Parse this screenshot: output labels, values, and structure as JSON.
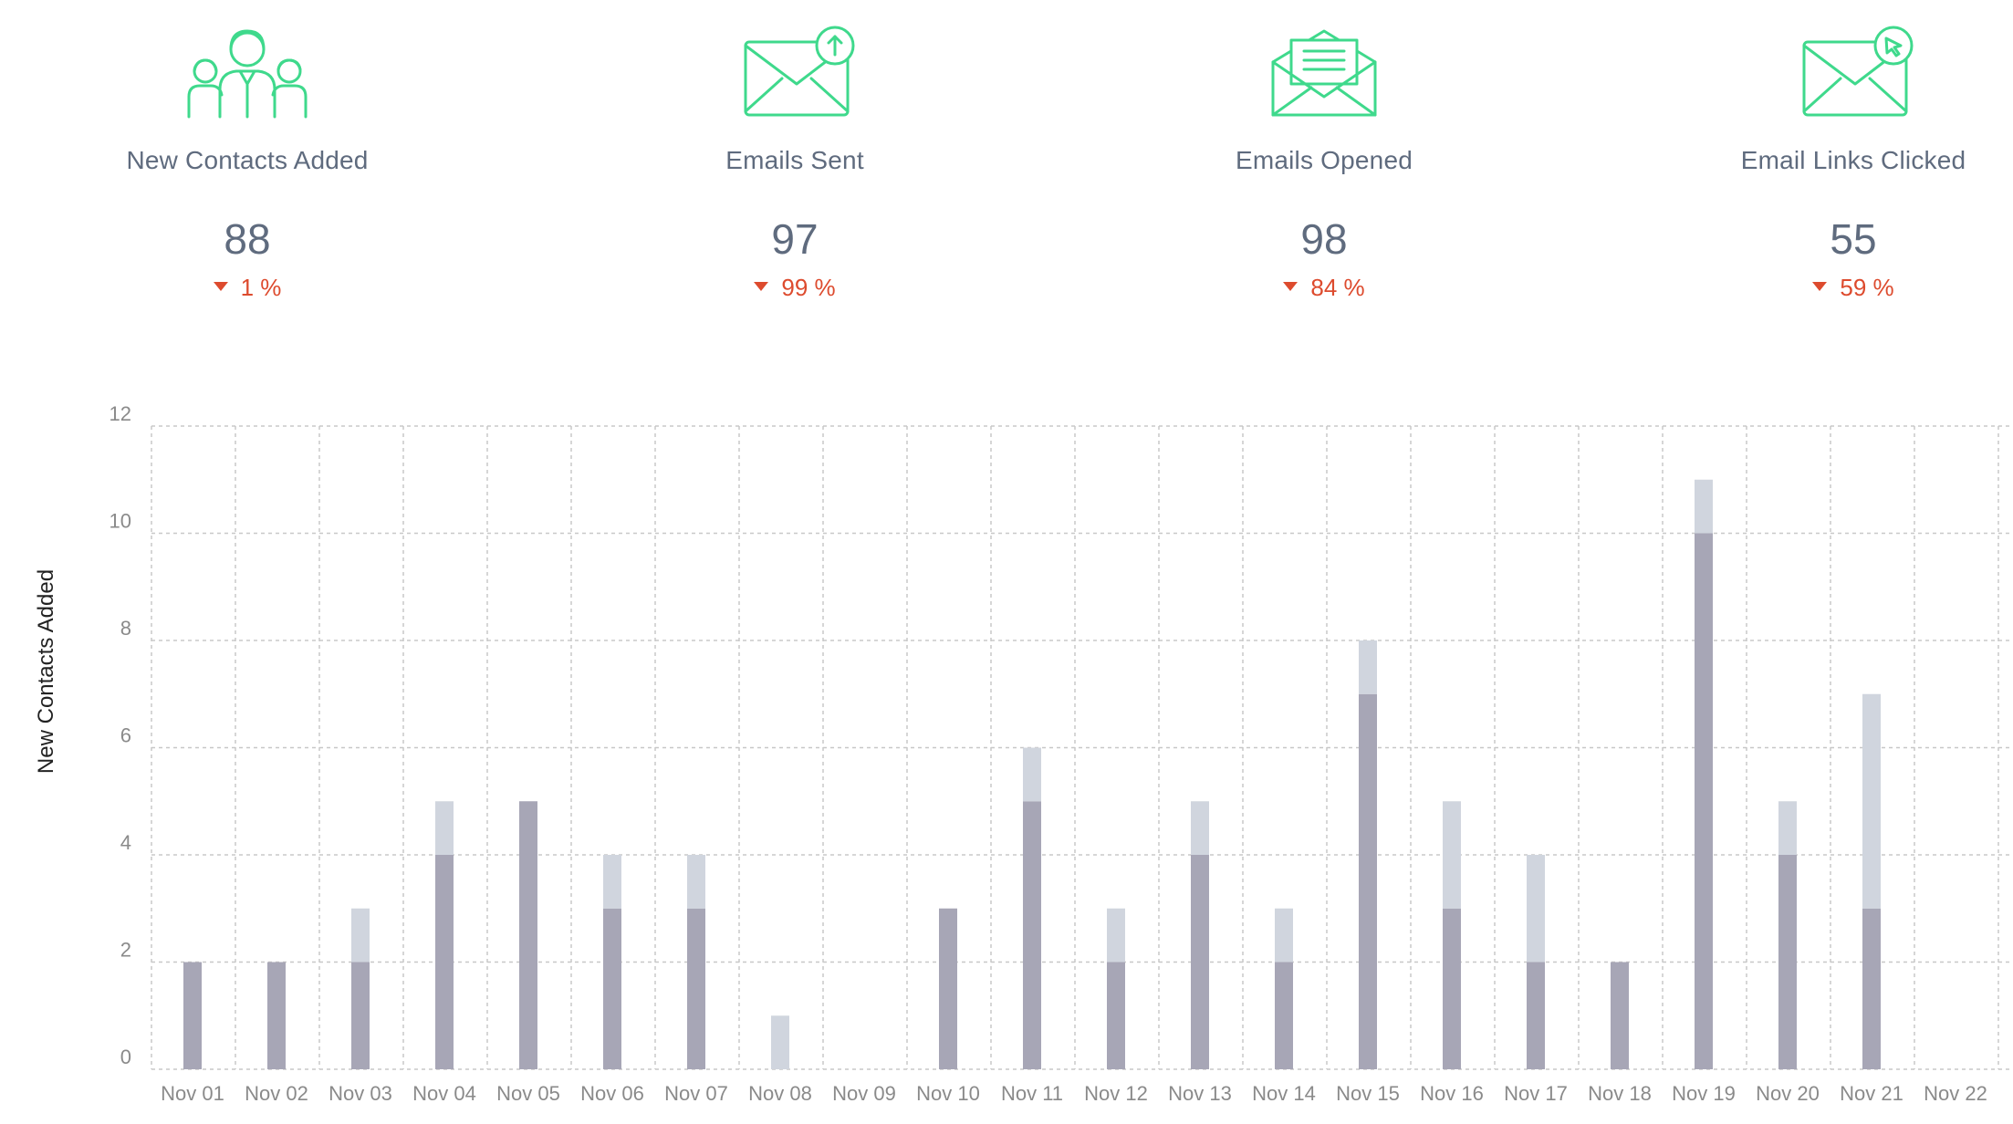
{
  "stats": [
    {
      "icon": "users-group-icon",
      "label": "New Contacts Added",
      "value": "88",
      "delta": "1 %",
      "trend": "down"
    },
    {
      "icon": "email-sent-icon",
      "label": "Emails Sent",
      "value": "97",
      "delta": "99 %",
      "trend": "down"
    },
    {
      "icon": "email-opened-icon",
      "label": "Emails Opened",
      "value": "98",
      "delta": "84 %",
      "trend": "down"
    },
    {
      "icon": "email-link-clicked-icon",
      "label": "Email Links Clicked",
      "value": "55",
      "delta": "59 %",
      "trend": "down"
    }
  ],
  "colors": {
    "icon_green": "#3fd98c",
    "text": "#5f6b7e",
    "negative": "#dd4b2e",
    "bar_dark": "#a7a6b6",
    "bar_light": "#d0d5de",
    "grid": "#c8c8c8",
    "tick": "#8a8a8a"
  },
  "chart_data": {
    "type": "bar",
    "stacked": true,
    "ylabel": "New Contacts Added",
    "ylim": [
      0,
      12
    ],
    "yticks": [
      0,
      2,
      4,
      6,
      8,
      10,
      12
    ],
    "grid": true,
    "categories": [
      "Nov 01",
      "Nov 02",
      "Nov 03",
      "Nov 04",
      "Nov 05",
      "Nov 06",
      "Nov 07",
      "Nov 08",
      "Nov 09",
      "Nov 10",
      "Nov 11",
      "Nov 12",
      "Nov 13",
      "Nov 14",
      "Nov 15",
      "Nov 16",
      "Nov 17",
      "Nov 18",
      "Nov 19",
      "Nov 20",
      "Nov 21",
      "Nov 22"
    ],
    "series": [
      {
        "color": "#a7a6b6",
        "values": [
          2,
          2,
          2,
          4,
          5,
          3,
          3,
          0,
          0,
          3,
          5,
          2,
          4,
          2,
          7,
          3,
          2,
          2,
          10,
          4,
          3,
          0
        ]
      },
      {
        "color": "#d0d5de",
        "values": [
          0,
          0,
          1,
          1,
          0,
          1,
          1,
          1,
          0,
          0,
          1,
          1,
          1,
          1,
          1,
          2,
          2,
          0,
          1,
          1,
          4,
          0
        ]
      }
    ]
  }
}
